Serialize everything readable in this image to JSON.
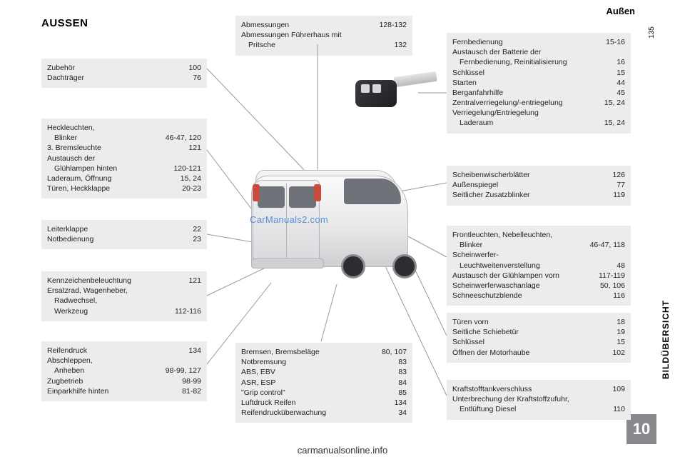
{
  "header_section": "Außen",
  "title": "AUSSEN",
  "side_label": "BILDÜBERSICHT",
  "chapter_num": "10",
  "page_num_side": "135",
  "watermark": "CarManuals2.com",
  "footer_url": "carmanualsonline.info",
  "boxes": {
    "top_mid": [
      {
        "l": "Abmessungen",
        "p": "128-132"
      },
      {
        "l": "Abmessungen Führerhaus mit",
        "p": ""
      },
      {
        "l": "Pritsche",
        "p": "132",
        "indent": true
      }
    ],
    "l1": [
      {
        "l": "Zubehör",
        "p": "100"
      },
      {
        "l": "Dachträger",
        "p": "76"
      }
    ],
    "l2": [
      {
        "l": "Heckleuchten,",
        "p": ""
      },
      {
        "l": "Blinker",
        "p": "46-47, 120",
        "indent": true
      },
      {
        "l": "3. Bremsleuchte",
        "p": "121"
      },
      {
        "l": "Austausch der",
        "p": ""
      },
      {
        "l": "Glühlampen hinten",
        "p": "120-121",
        "indent": true
      },
      {
        "l": "Laderaum, Öffnung",
        "p": "15, 24"
      },
      {
        "l": "Türen, Heckklappe",
        "p": "20-23"
      }
    ],
    "l3": [
      {
        "l": "Leiterklappe",
        "p": "22"
      },
      {
        "l": "Notbedienung",
        "p": "23"
      }
    ],
    "l4": [
      {
        "l": "Kennzeichenbeleuchtung",
        "p": "121"
      },
      {
        "l": "Ersatzrad, Wagenheber,",
        "p": ""
      },
      {
        "l": "Radwechsel,",
        "p": "",
        "indent": true
      },
      {
        "l": "Werkzeug",
        "p": "112-116",
        "indent": true
      }
    ],
    "l5": [
      {
        "l": "Reifendruck",
        "p": "134"
      },
      {
        "l": "Abschleppen,",
        "p": ""
      },
      {
        "l": "Anheben",
        "p": "98-99, 127",
        "indent": true
      },
      {
        "l": "Zugbetrieb",
        "p": "98-99"
      },
      {
        "l": "Einparkhilfe hinten",
        "p": "81-82"
      }
    ],
    "bot_mid": [
      {
        "l": "Bremsen, Bremsbeläge",
        "p": "80, 107"
      },
      {
        "l": "Notbremsung",
        "p": "83"
      },
      {
        "l": "ABS, EBV",
        "p": "83"
      },
      {
        "l": "ASR, ESP",
        "p": "84"
      },
      {
        "l": "\"Grip control\"",
        "p": "85"
      },
      {
        "l": "Luftdruck Reifen",
        "p": "134"
      },
      {
        "l": "Reifendrucküberwachung",
        "p": "34"
      }
    ],
    "r1": [
      {
        "l": "Fernbedienung",
        "p": "15-16"
      },
      {
        "l": "Austausch der Batterie der",
        "p": ""
      },
      {
        "l": "Fernbedienung, Reinitialisierung",
        "p": "16",
        "indent": true
      },
      {
        "l": "Schlüssel",
        "p": "15"
      },
      {
        "l": "Starten",
        "p": "44"
      },
      {
        "l": "Berganfahrhilfe",
        "p": "45"
      },
      {
        "l": "Zentralverriegelung/-entriegelung",
        "p": "15, 24"
      },
      {
        "l": "Verriegelung/Entriegelung",
        "p": ""
      },
      {
        "l": "Laderaum",
        "p": "15, 24",
        "indent": true
      }
    ],
    "r2": [
      {
        "l": "Scheibenwischerblätter",
        "p": "126"
      },
      {
        "l": "Außenspiegel",
        "p": "77"
      },
      {
        "l": "Seitlicher Zusatzblinker",
        "p": "119"
      }
    ],
    "r3": [
      {
        "l": "Frontleuchten, Nebelleuchten,",
        "p": ""
      },
      {
        "l": "Blinker",
        "p": "46-47, 118",
        "indent": true
      },
      {
        "l": "Scheinwerfer-",
        "p": ""
      },
      {
        "l": "Leuchtweitenverstellung",
        "p": "48",
        "indent": true
      },
      {
        "l": "Austausch der Glühlampen vorn",
        "p": "117-119"
      },
      {
        "l": "Scheinwerferwaschanlage",
        "p": "50, 106"
      },
      {
        "l": "Schneeschutzblende",
        "p": "116"
      }
    ],
    "r4": [
      {
        "l": "Türen vorn",
        "p": "18"
      },
      {
        "l": "Seitliche Schiebetür",
        "p": "19"
      },
      {
        "l": "Schlüssel",
        "p": "15"
      },
      {
        "l": "Öffnen der Motorhaube",
        "p": "102"
      }
    ],
    "r5": [
      {
        "l": "Kraftstofftankverschluss",
        "p": "109"
      },
      {
        "l": "Unterbrechung der Kraftstoffzufuhr,",
        "p": ""
      },
      {
        "l": "Entlüftung Diesel",
        "p": "110",
        "indent": true
      }
    ]
  }
}
